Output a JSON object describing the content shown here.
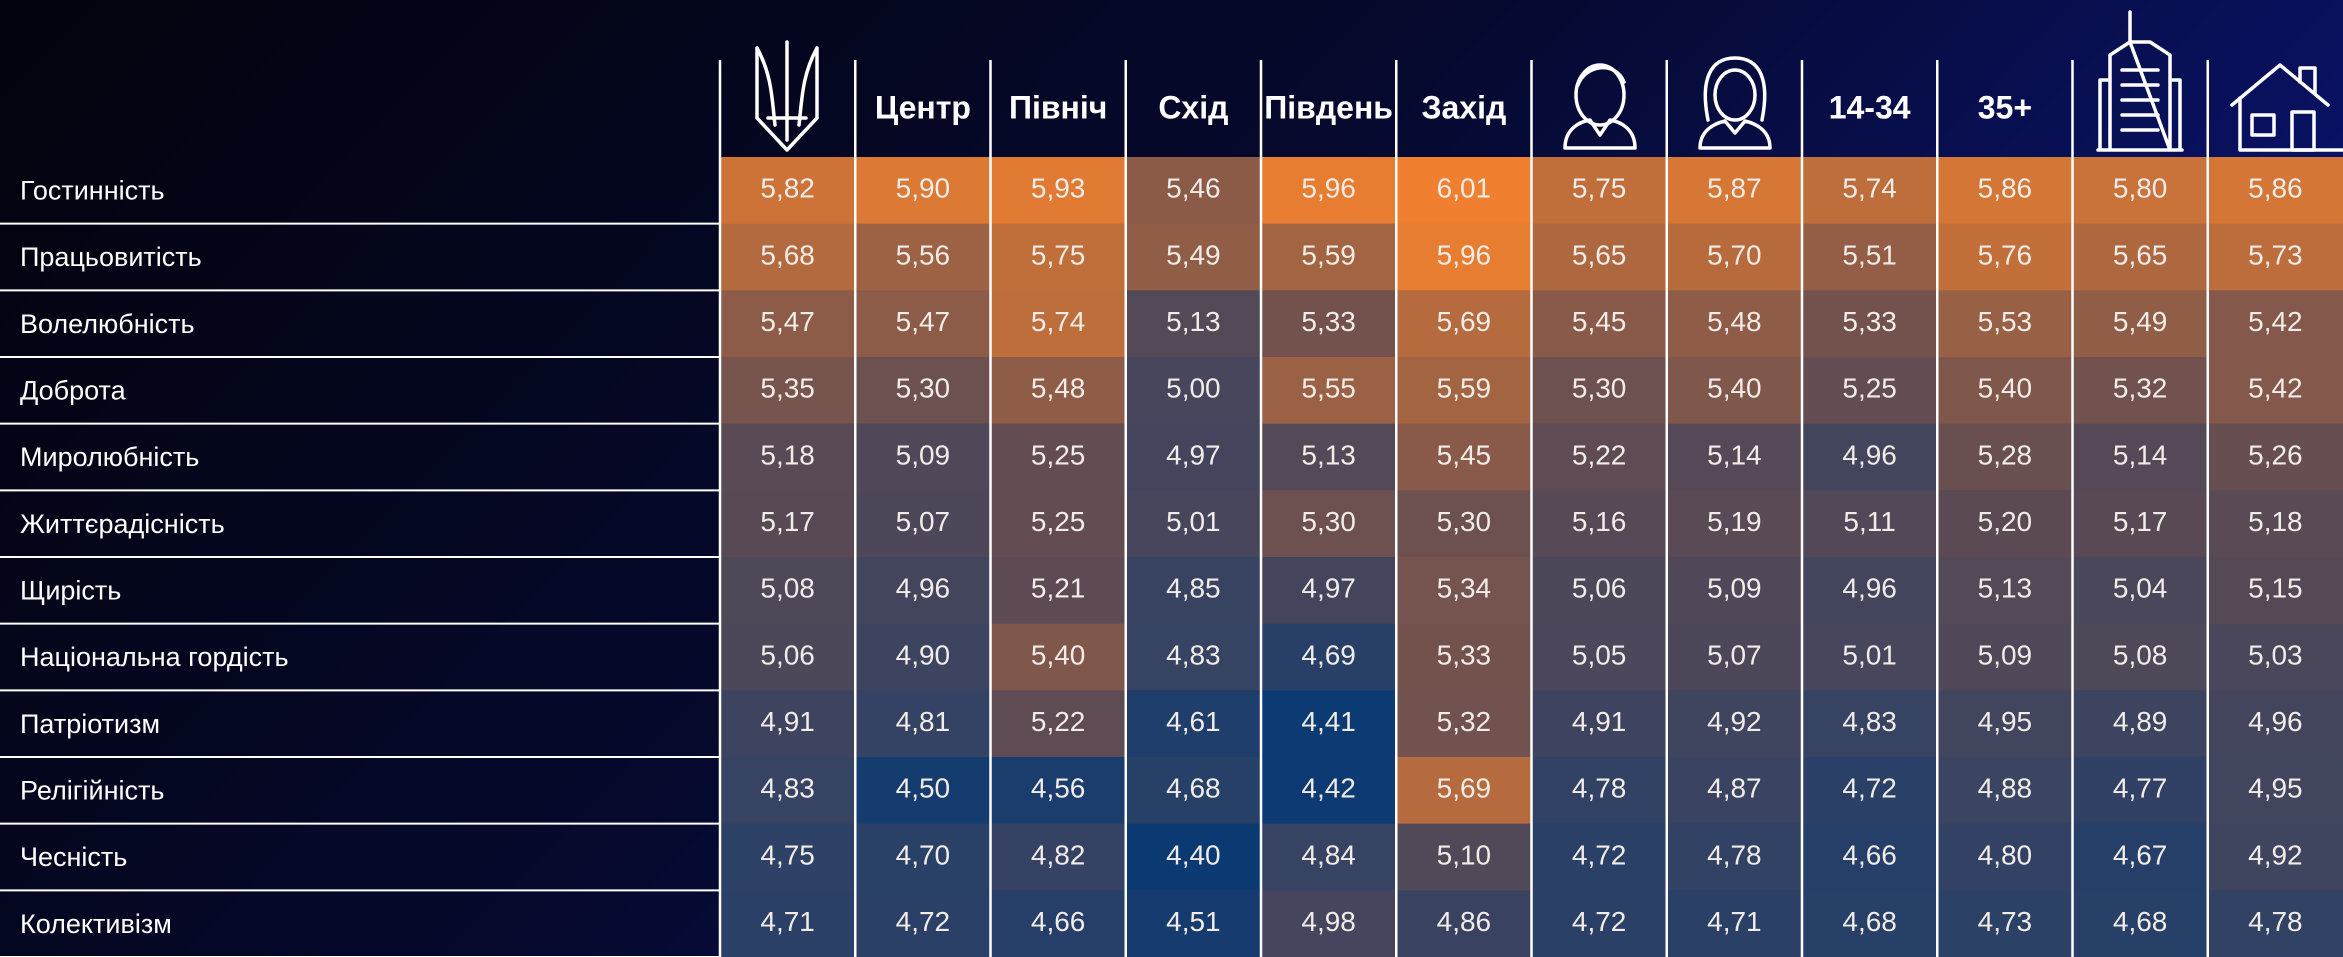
{
  "table": {
    "columns": [
      null,
      "Центр",
      "Північ",
      "Схід",
      "Південь",
      "Захід",
      null,
      null,
      "14-34",
      "35+",
      null,
      null
    ],
    "heat_colors": [
      "#0b3a73",
      "#5c4a54",
      "#f0802f"
    ],
    "rows": [
      {
        "label": "Гостинність",
        "values": [
          "5,82",
          "5,90",
          "5,93",
          "5,46",
          "5,96",
          "6,01",
          "5,75",
          "5,87",
          "5,74",
          "5,86",
          "5,80",
          "5,86"
        ]
      },
      {
        "label": "Працьовитість",
        "values": [
          "5,68",
          "5,56",
          "5,75",
          "5,49",
          "5,59",
          "5,96",
          "5,65",
          "5,70",
          "5,51",
          "5,76",
          "5,65",
          "5,73"
        ]
      },
      {
        "label": "Волелюбність",
        "values": [
          "5,47",
          "5,47",
          "5,74",
          "5,13",
          "5,33",
          "5,69",
          "5,45",
          "5,48",
          "5,33",
          "5,53",
          "5,49",
          "5,42"
        ]
      },
      {
        "label": "Доброта",
        "values": [
          "5,35",
          "5,30",
          "5,48",
          "5,00",
          "5,55",
          "5,59",
          "5,30",
          "5,40",
          "5,25",
          "5,40",
          "5,32",
          "5,42"
        ]
      },
      {
        "label": "Миролюбність",
        "values": [
          "5,18",
          "5,09",
          "5,25",
          "4,97",
          "5,13",
          "5,45",
          "5,22",
          "5,14",
          "4,96",
          "5,28",
          "5,14",
          "5,26"
        ]
      },
      {
        "label": "Життєрадісність",
        "values": [
          "5,17",
          "5,07",
          "5,25",
          "5,01",
          "5,30",
          "5,30",
          "5,16",
          "5,19",
          "5,11",
          "5,20",
          "5,17",
          "5,18"
        ]
      },
      {
        "label": "Щирість",
        "values": [
          "5,08",
          "4,96",
          "5,21",
          "4,85",
          "4,97",
          "5,34",
          "5,06",
          "5,09",
          "4,96",
          "5,13",
          "5,04",
          "5,15"
        ]
      },
      {
        "label": "Національна гордість",
        "values": [
          "5,06",
          "4,90",
          "5,40",
          "4,83",
          "4,69",
          "5,33",
          "5,05",
          "5,07",
          "5,01",
          "5,09",
          "5,08",
          "5,03"
        ]
      },
      {
        "label": "Патріотизм",
        "values": [
          "4,91",
          "4,81",
          "5,22",
          "4,61",
          "4,41",
          "5,32",
          "4,91",
          "4,92",
          "4,83",
          "4,95",
          "4,89",
          "4,96"
        ]
      },
      {
        "label": "Релігійність",
        "values": [
          "4,83",
          "4,50",
          "4,56",
          "4,68",
          "4,42",
          "5,69",
          "4,78",
          "4,87",
          "4,72",
          "4,88",
          "4,77",
          "4,95"
        ]
      },
      {
        "label": "Чесність",
        "values": [
          "4,75",
          "4,70",
          "4,82",
          "4,40",
          "4,84",
          "5,10",
          "4,72",
          "4,78",
          "4,66",
          "4,80",
          "4,67",
          "4,92"
        ]
      },
      {
        "label": "Колективізм",
        "values": [
          "4,71",
          "4,72",
          "4,66",
          "4,51",
          "4,98",
          "4,86",
          "4,72",
          "4,71",
          "4,68",
          "4,73",
          "4,68",
          "4,78"
        ]
      }
    ]
  }
}
